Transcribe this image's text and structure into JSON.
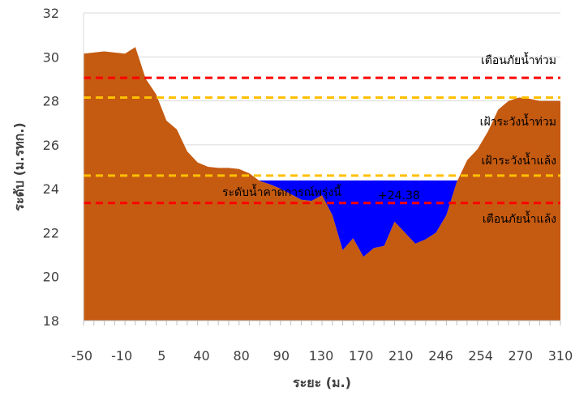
{
  "chart_data": {
    "type": "area",
    "xlabel": "ระยะ (ม.)",
    "ylabel": "ระดับ (ม.รทก.)",
    "ylim": [
      18,
      32
    ],
    "yticks": [
      18,
      20,
      22,
      24,
      26,
      28,
      30,
      32
    ],
    "x_tick_labels": [
      "-50",
      "-10",
      "5",
      "40",
      "80",
      "90",
      "130",
      "170",
      "210",
      "246",
      "254",
      "270",
      "310"
    ],
    "grid": "horizontal",
    "colors": {
      "ground": "#C55A11",
      "water": "#0000FF",
      "flood_warning": "#FF0000",
      "flood_watch": "#FFC000",
      "drought_watch": "#FFC000",
      "drought_warning": "#FF0000",
      "grid": "#D9D9D9"
    },
    "series": [
      {
        "name": "ground",
        "values": [
          30.15,
          30.2,
          30.25,
          30.2,
          30.15,
          30.45,
          29.0,
          28.3,
          27.1,
          26.7,
          25.7,
          25.2,
          25.0,
          24.95,
          24.95,
          24.9,
          24.7,
          24.35,
          24.2,
          24.0,
          23.75,
          23.5,
          23.45,
          23.7,
          22.8,
          21.2,
          21.75,
          20.9,
          21.3,
          21.4,
          22.5,
          22.0,
          21.5,
          21.7,
          22.0,
          22.8,
          24.3,
          25.3,
          25.8,
          26.6,
          27.6,
          28.0,
          28.15,
          28.1,
          28.0,
          28.0,
          28.0
        ]
      }
    ],
    "water_level": {
      "label": "ระดับน้ำคาดการณ์พรุ่งนี้",
      "value_label": "+24.38",
      "value": 24.38
    },
    "reference_lines": [
      {
        "label": "เตือนภัยน้ำท่วม",
        "value": 29.05,
        "color": "#FF0000"
      },
      {
        "label": "เฝ้าระวังน้ำท่วม",
        "value": 28.15,
        "color": "#FFC000"
      },
      {
        "label": "เฝ้าระวังน้ำแล้ง",
        "value": 24.6,
        "color": "#FFC000"
      },
      {
        "label": "เตือนภัยน้ำแล้ง",
        "value": 23.35,
        "color": "#FF0000"
      }
    ]
  }
}
